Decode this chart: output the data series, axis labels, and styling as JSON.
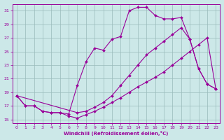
{
  "xlabel": "Windchill (Refroidissement éolien,°C)",
  "bg_color": "#cce8e8",
  "grid_color": "#99bbbb",
  "line_color": "#990099",
  "xlim_min": -0.5,
  "xlim_max": 23.5,
  "ylim_min": 14.5,
  "ylim_max": 32.0,
  "yticks": [
    15,
    17,
    19,
    21,
    23,
    25,
    27,
    29,
    31
  ],
  "xticks": [
    0,
    1,
    2,
    3,
    4,
    5,
    6,
    7,
    8,
    9,
    10,
    11,
    12,
    13,
    14,
    15,
    16,
    17,
    18,
    19,
    20,
    21,
    22,
    23
  ],
  "line1_x": [
    0,
    1,
    2,
    3,
    4,
    5,
    6,
    7,
    8,
    9,
    10,
    11,
    12,
    13,
    14,
    15,
    16,
    17,
    18,
    19,
    20,
    21,
    22,
    23
  ],
  "line1_y": [
    18.5,
    17.0,
    17.0,
    16.2,
    16.0,
    16.0,
    15.5,
    15.2,
    15.7,
    16.2,
    16.8,
    17.5,
    18.2,
    19.0,
    19.8,
    20.5,
    21.2,
    22.0,
    23.0,
    24.0,
    25.0,
    26.0,
    27.0,
    19.5
  ],
  "line2_x": [
    0,
    1,
    2,
    3,
    4,
    5,
    6,
    7,
    8,
    9,
    10,
    11,
    12,
    13,
    14,
    15,
    16,
    17,
    18,
    19,
    20,
    21,
    22,
    23
  ],
  "line2_y": [
    18.5,
    17.0,
    17.0,
    16.2,
    16.0,
    16.0,
    15.8,
    20.0,
    23.5,
    25.5,
    25.2,
    26.8,
    27.2,
    31.0,
    31.5,
    31.5,
    30.3,
    29.8,
    29.8,
    30.0,
    26.8,
    22.5,
    20.2,
    19.5
  ],
  "line3_x": [
    0,
    7,
    8,
    9,
    10,
    11,
    12,
    13,
    14,
    15,
    16,
    17,
    18,
    19,
    20,
    21,
    22,
    23
  ],
  "line3_y": [
    18.5,
    16.0,
    16.2,
    16.8,
    17.5,
    18.5,
    20.0,
    21.5,
    23.0,
    24.5,
    25.5,
    26.5,
    27.5,
    28.5,
    26.8,
    22.5,
    20.2,
    19.5
  ]
}
